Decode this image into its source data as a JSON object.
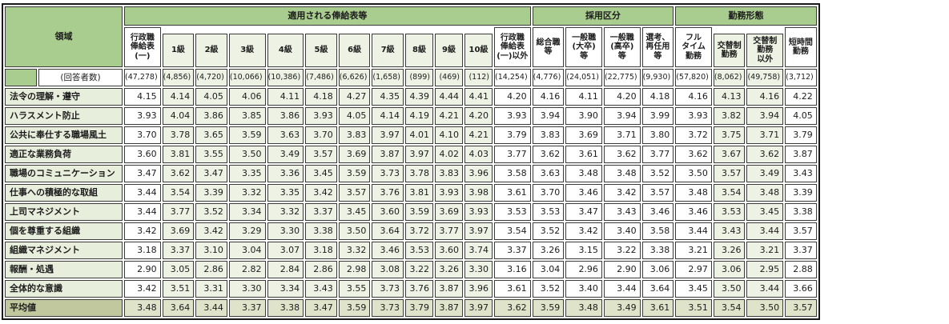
{
  "table": {
    "corner_label": "領域",
    "respondents_label": "(回答者数)",
    "groups": [
      {
        "label": "適用される俸給表等",
        "span": 12
      },
      {
        "label": "採用区分",
        "span": 4
      },
      {
        "label": "勤務形態",
        "span": 4
      }
    ],
    "columns": [
      {
        "id": "gyoseishoku-hokyuhyo-ichi",
        "label": "行政職\n俸給表\n(一)",
        "nested": false,
        "count": "(47,278)"
      },
      {
        "id": "grade-1",
        "label": "1級",
        "nested": true,
        "count": "(4,856)"
      },
      {
        "id": "grade-2",
        "label": "2級",
        "nested": true,
        "count": "(4,720)"
      },
      {
        "id": "grade-3",
        "label": "3級",
        "nested": true,
        "count": "(10,066)"
      },
      {
        "id": "grade-4",
        "label": "4級",
        "nested": true,
        "count": "(10,386)"
      },
      {
        "id": "grade-5",
        "label": "5級",
        "nested": true,
        "count": "(7,486)"
      },
      {
        "id": "grade-6",
        "label": "6級",
        "nested": true,
        "count": "(6,626)"
      },
      {
        "id": "grade-7",
        "label": "7級",
        "nested": true,
        "count": "(1,658)"
      },
      {
        "id": "grade-8",
        "label": "8級",
        "nested": true,
        "count": "(899)"
      },
      {
        "id": "grade-9",
        "label": "9級",
        "nested": true,
        "count": "(469)"
      },
      {
        "id": "grade-10",
        "label": "10級",
        "nested": true,
        "count": "(112)"
      },
      {
        "id": "gyoseishoku-igai",
        "label": "行政職\n俸給表\n(一)以外",
        "nested": false,
        "count": "(14,254)"
      },
      {
        "id": "sogoshoku-to",
        "label": "総合職\n等",
        "nested": false,
        "count": "(4,776)"
      },
      {
        "id": "ippanshoku-daisotsu",
        "label": "一般職\n(大卒)\n等",
        "nested": false,
        "count": "(24,051)"
      },
      {
        "id": "ippanshoku-kosotsu",
        "label": "一般職\n(高卒)\n等",
        "nested": false,
        "count": "(22,775)"
      },
      {
        "id": "senko-saininyo",
        "label": "選考、\n再任用\n等",
        "nested": false,
        "count": "(9,930)"
      },
      {
        "id": "fulltime-kinmu",
        "label": "フル\nタイム\n勤務",
        "nested": false,
        "count": "(57,820)"
      },
      {
        "id": "kotaisei-kinmu",
        "label": "交替制\n勤務",
        "nested": true,
        "count": "(8,062)"
      },
      {
        "id": "kotaisei-igai",
        "label": "交替制\n勤務\n以外",
        "nested": true,
        "count": "(49,758)"
      },
      {
        "id": "tanjikan-kinmu",
        "label": "短時間\n勤務",
        "nested": false,
        "count": "(3,712)"
      }
    ],
    "rows": [
      {
        "label": "法令の理解・遵守",
        "values": [
          "4.15",
          "4.14",
          "4.05",
          "4.06",
          "4.11",
          "4.18",
          "4.27",
          "4.35",
          "4.39",
          "4.44",
          "4.41",
          "4.20",
          "4.16",
          "4.11",
          "4.20",
          "4.18",
          "4.16",
          "4.13",
          "4.16",
          "4.22"
        ]
      },
      {
        "label": "ハラスメント防止",
        "values": [
          "3.93",
          "4.04",
          "3.86",
          "3.85",
          "3.86",
          "3.93",
          "4.05",
          "4.14",
          "4.19",
          "4.21",
          "4.20",
          "3.93",
          "3.94",
          "3.90",
          "3.94",
          "3.99",
          "3.93",
          "3.82",
          "3.94",
          "4.05"
        ]
      },
      {
        "label": "公共に奉仕する職場風土",
        "values": [
          "3.70",
          "3.78",
          "3.65",
          "3.59",
          "3.63",
          "3.70",
          "3.83",
          "3.97",
          "4.01",
          "4.10",
          "4.21",
          "3.79",
          "3.83",
          "3.69",
          "3.71",
          "3.80",
          "3.72",
          "3.75",
          "3.71",
          "3.79"
        ]
      },
      {
        "label": "適正な業務負荷",
        "values": [
          "3.60",
          "3.81",
          "3.55",
          "3.50",
          "3.49",
          "3.57",
          "3.69",
          "3.87",
          "3.97",
          "4.02",
          "4.03",
          "3.77",
          "3.62",
          "3.61",
          "3.62",
          "3.77",
          "3.62",
          "3.67",
          "3.62",
          "3.87"
        ]
      },
      {
        "label": "職場のコミュニケーション",
        "values": [
          "3.47",
          "3.62",
          "3.47",
          "3.35",
          "3.36",
          "3.45",
          "3.59",
          "3.73",
          "3.78",
          "3.83",
          "3.96",
          "3.58",
          "3.63",
          "3.48",
          "3.48",
          "3.52",
          "3.50",
          "3.57",
          "3.49",
          "3.43"
        ]
      },
      {
        "label": "仕事への積極的な取組",
        "values": [
          "3.44",
          "3.54",
          "3.39",
          "3.32",
          "3.35",
          "3.42",
          "3.57",
          "3.76",
          "3.81",
          "3.93",
          "3.98",
          "3.61",
          "3.70",
          "3.46",
          "3.42",
          "3.57",
          "3.48",
          "3.54",
          "3.48",
          "3.39"
        ]
      },
      {
        "label": "上司マネジメント",
        "values": [
          "3.44",
          "3.77",
          "3.52",
          "3.34",
          "3.32",
          "3.37",
          "3.45",
          "3.60",
          "3.59",
          "3.69",
          "3.93",
          "3.53",
          "3.53",
          "3.47",
          "3.43",
          "3.46",
          "3.46",
          "3.53",
          "3.45",
          "3.38"
        ]
      },
      {
        "label": "個を尊重する組織",
        "values": [
          "3.42",
          "3.69",
          "3.42",
          "3.29",
          "3.30",
          "3.38",
          "3.50",
          "3.64",
          "3.72",
          "3.77",
          "3.97",
          "3.54",
          "3.52",
          "3.42",
          "3.40",
          "3.58",
          "3.44",
          "3.43",
          "3.44",
          "3.57"
        ]
      },
      {
        "label": "組織マネジメント",
        "values": [
          "3.18",
          "3.37",
          "3.10",
          "3.04",
          "3.07",
          "3.18",
          "3.32",
          "3.46",
          "3.53",
          "3.60",
          "3.74",
          "3.37",
          "3.26",
          "3.15",
          "3.22",
          "3.38",
          "3.21",
          "3.26",
          "3.21",
          "3.37"
        ]
      },
      {
        "label": "報酬・処遇",
        "values": [
          "2.90",
          "3.05",
          "2.86",
          "2.82",
          "2.84",
          "2.86",
          "2.98",
          "3.08",
          "3.22",
          "3.26",
          "3.30",
          "3.16",
          "3.04",
          "2.96",
          "2.90",
          "3.06",
          "2.97",
          "3.06",
          "2.95",
          "2.88"
        ]
      },
      {
        "label": "全体的な意識",
        "values": [
          "3.42",
          "3.51",
          "3.31",
          "3.30",
          "3.34",
          "3.43",
          "3.55",
          "3.73",
          "3.76",
          "3.87",
          "3.96",
          "3.61",
          "3.52",
          "3.40",
          "3.44",
          "3.64",
          "3.45",
          "3.50",
          "3.44",
          "3.66"
        ]
      },
      {
        "label": "平均値",
        "is_average": true,
        "values": [
          "3.48",
          "3.64",
          "3.44",
          "3.37",
          "3.38",
          "3.47",
          "3.59",
          "3.73",
          "3.79",
          "3.87",
          "3.97",
          "3.62",
          "3.59",
          "3.48",
          "3.49",
          "3.61",
          "3.51",
          "3.54",
          "3.50",
          "3.57"
        ]
      }
    ],
    "colors": {
      "header_green": "#a9cc8f",
      "nested_tint": "#edf2e4",
      "row_label_tint": "#e7eedb",
      "average_label": "#c2c89e",
      "average_cell": "#dfe3c9",
      "border": "#3a3a3a"
    }
  }
}
